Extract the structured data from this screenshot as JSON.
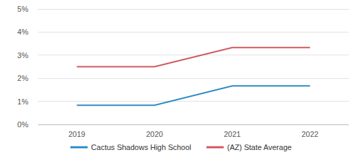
{
  "chart_data": {
    "type": "line",
    "categories": [
      "2019",
      "2020",
      "2021",
      "2022"
    ],
    "series": [
      {
        "name": "Cactus Shadows High School",
        "color": "#2b8cc4",
        "values": [
          0.83,
          0.83,
          1.67,
          1.67
        ]
      },
      {
        "name": "(AZ) State Average",
        "color": "#d0575c",
        "values": [
          2.5,
          2.5,
          3.33,
          3.33
        ]
      }
    ],
    "ylim": [
      0,
      5
    ],
    "yticks": [
      {
        "value": 0,
        "label": "0%"
      },
      {
        "value": 1,
        "label": "1%"
      },
      {
        "value": 2,
        "label": "2%"
      },
      {
        "value": 3,
        "label": "3%"
      },
      {
        "value": 4,
        "label": "4%"
      },
      {
        "value": 5,
        "label": "5%"
      }
    ],
    "grid": true,
    "legend": "bottom"
  }
}
